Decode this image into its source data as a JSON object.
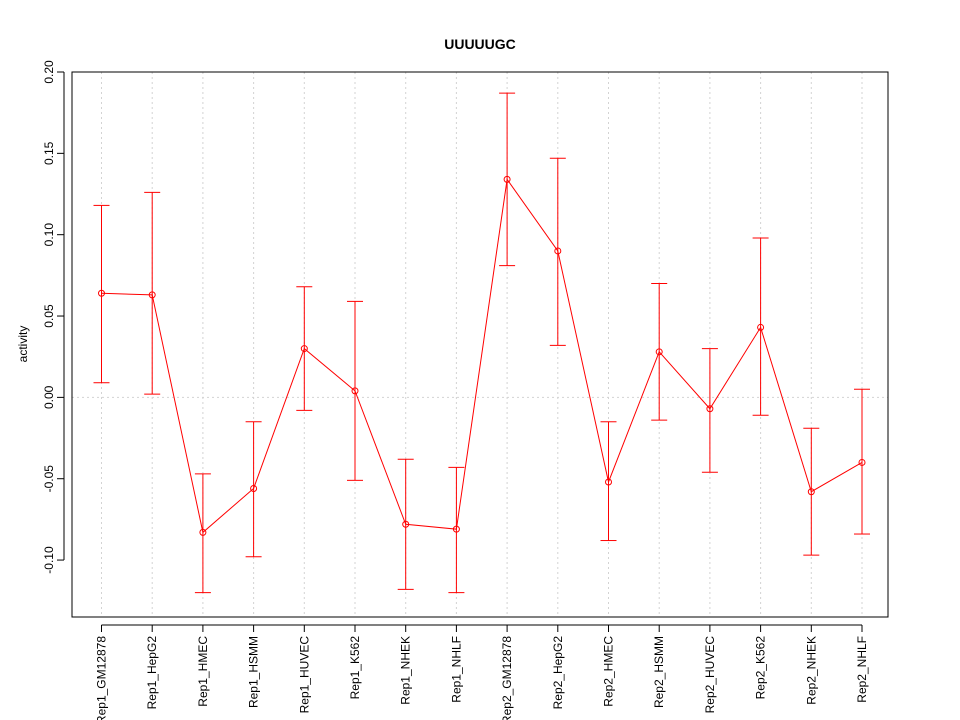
{
  "chart_data": {
    "type": "line",
    "title": "UUUUUGC",
    "xlabel": "",
    "ylabel": "activity",
    "ylim": [
      -0.135,
      0.2
    ],
    "yticks": [
      -0.1,
      -0.05,
      0.0,
      0.05,
      0.1,
      0.15,
      0.2
    ],
    "ytick_labels": [
      "-0.10",
      "-0.05",
      "0.00",
      "0.05",
      "0.10",
      "0.15",
      "0.20"
    ],
    "grid": true,
    "categories": [
      "Rep1_GM12878",
      "Rep1_HepG2",
      "Rep1_HMEC",
      "Rep1_HSMM",
      "Rep1_HUVEC",
      "Rep1_K562",
      "Rep1_NHEK",
      "Rep1_NHLF",
      "Rep2_GM12878",
      "Rep2_HepG2",
      "Rep2_HMEC",
      "Rep2_HSMM",
      "Rep2_HUVEC",
      "Rep2_K562",
      "Rep2_NHEK",
      "Rep2_NHLF"
    ],
    "series": [
      {
        "values": [
          0.064,
          0.063,
          -0.083,
          -0.056,
          0.03,
          0.004,
          -0.078,
          -0.081,
          0.134,
          0.09,
          -0.052,
          0.028,
          -0.007,
          0.043,
          -0.058,
          -0.04
        ],
        "err_lower": [
          0.009,
          0.002,
          -0.12,
          -0.098,
          -0.008,
          -0.051,
          -0.118,
          -0.12,
          0.081,
          0.032,
          -0.088,
          -0.014,
          -0.046,
          -0.011,
          -0.097,
          -0.084
        ],
        "err_upper": [
          0.118,
          0.126,
          -0.047,
          -0.015,
          0.068,
          0.059,
          -0.038,
          -0.043,
          0.187,
          0.147,
          -0.015,
          0.07,
          0.03,
          0.098,
          -0.019,
          0.005
        ]
      }
    ],
    "colors": {
      "series": "#ff0000",
      "grid": "#d3d3d3",
      "axis": "#000000"
    }
  }
}
